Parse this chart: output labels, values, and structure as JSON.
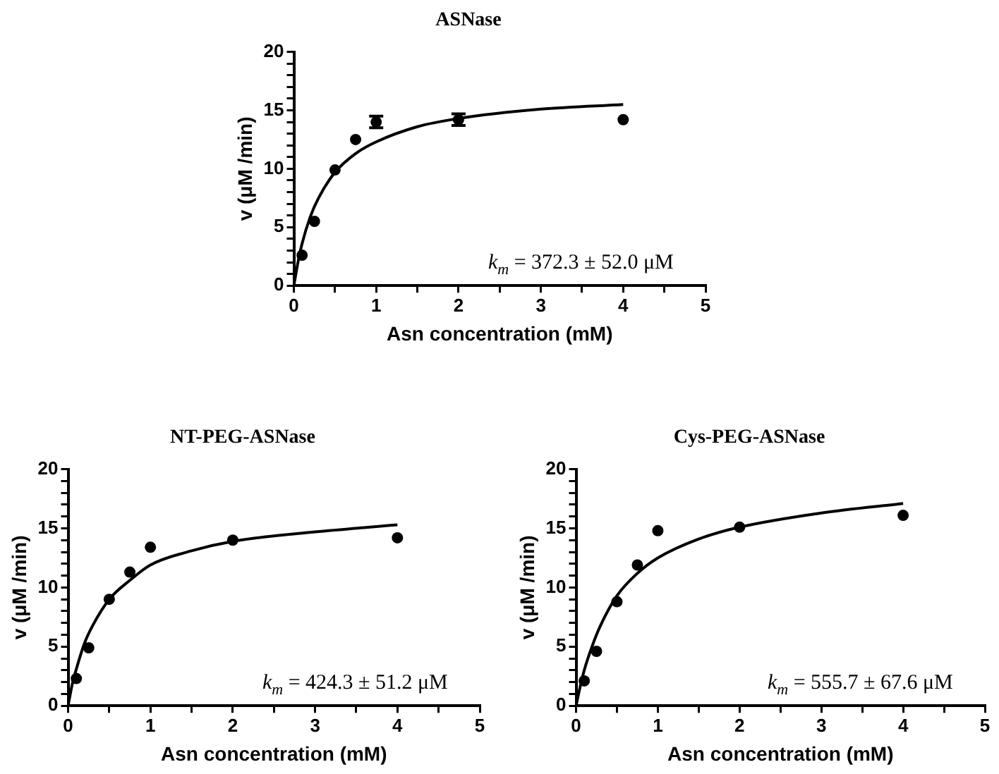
{
  "chart_data": [
    {
      "type": "scatter",
      "title": "ASNase",
      "xlabel": "Asn concentration (mM)",
      "ylabel": "v (μM /min)",
      "xlim": [
        0,
        5
      ],
      "ylim": [
        0,
        20
      ],
      "xticks": [
        0,
        {
          "value": 0.5,
          "label": null
        },
        1,
        {
          "value": 1.5,
          "label": null
        },
        2,
        {
          "value": 2.5,
          "label": null
        },
        3,
        {
          "value": 3.5,
          "label": null
        },
        4,
        {
          "value": 4.5,
          "label": null
        },
        5
      ],
      "yticks": [
        0,
        {
          "value": 1,
          "label": null
        },
        {
          "value": 2,
          "label": null
        },
        {
          "value": 3,
          "label": null
        },
        {
          "value": 4,
          "label": null
        },
        5,
        {
          "value": 6,
          "label": null
        },
        {
          "value": 7,
          "label": null
        },
        {
          "value": 8,
          "label": null
        },
        {
          "value": 9,
          "label": null
        },
        10,
        {
          "value": 11,
          "label": null
        },
        {
          "value": 12,
          "label": null
        },
        {
          "value": 13,
          "label": null
        },
        {
          "value": 14,
          "label": null
        },
        15,
        {
          "value": 16,
          "label": null
        },
        {
          "value": 17,
          "label": null
        },
        {
          "value": 18,
          "label": null
        },
        {
          "value": 19,
          "label": null
        },
        20
      ],
      "grid": false,
      "legend": false,
      "annotations": [
        "k$_{m}$ = 372.3 ± 52.0 μM"
      ],
      "series": [
        {
          "type": "scatter",
          "color": "#000000",
          "marker": "circle",
          "x": [
            0.1,
            0.25,
            0.5,
            0.75,
            1,
            2,
            4
          ],
          "values": [
            2.6,
            5.5,
            9.9,
            12.5,
            14.0,
            14.2,
            14.2
          ],
          "errors": [
            null,
            null,
            null,
            null,
            0.5,
            0.5,
            null
          ]
        },
        {
          "type": "line",
          "color": "#000000",
          "marker": "none",
          "line_style": "solid",
          "x": [
            0,
            0.05,
            0.1,
            0.2,
            0.3,
            0.5,
            0.75,
            1,
            1.5,
            2,
            3,
            4
          ],
          "values": [
            0,
            2.0,
            3.6,
            5.9,
            7.5,
            9.7,
            11.3,
            12.3,
            13.6,
            14.3,
            15.1,
            15.5
          ]
        }
      ]
    },
    {
      "type": "scatter",
      "title": "NT-PEG-ASNase",
      "xlabel": "Asn concentration (mM)",
      "ylabel": "v (μM /min)",
      "xlim": [
        0,
        5
      ],
      "ylim": [
        0,
        20
      ],
      "xticks": [
        0,
        {
          "value": 0.5,
          "label": null
        },
        1,
        {
          "value": 1.5,
          "label": null
        },
        2,
        {
          "value": 2.5,
          "label": null
        },
        3,
        {
          "value": 3.5,
          "label": null
        },
        4,
        {
          "value": 4.5,
          "label": null
        },
        5
      ],
      "yticks": [
        0,
        {
          "value": 1,
          "label": null
        },
        {
          "value": 2,
          "label": null
        },
        {
          "value": 3,
          "label": null
        },
        {
          "value": 4,
          "label": null
        },
        5,
        {
          "value": 6,
          "label": null
        },
        {
          "value": 7,
          "label": null
        },
        {
          "value": 8,
          "label": null
        },
        {
          "value": 9,
          "label": null
        },
        10,
        {
          "value": 11,
          "label": null
        },
        {
          "value": 12,
          "label": null
        },
        {
          "value": 13,
          "label": null
        },
        {
          "value": 14,
          "label": null
        },
        15,
        {
          "value": 16,
          "label": null
        },
        {
          "value": 17,
          "label": null
        },
        {
          "value": 18,
          "label": null
        },
        {
          "value": 19,
          "label": null
        },
        20
      ],
      "grid": false,
      "legend": false,
      "annotations": [
        "k$_{m}$ = 424.3 ± 51.2 μM"
      ],
      "series": [
        {
          "type": "scatter",
          "color": "#000000",
          "marker": "circle",
          "x": [
            0.1,
            0.25,
            0.5,
            0.75,
            1,
            2,
            4
          ],
          "values": [
            2.3,
            4.9,
            9.0,
            11.3,
            13.4,
            14.0,
            14.2
          ]
        },
        {
          "type": "line",
          "color": "#000000",
          "marker": "none",
          "line_style": "solid",
          "x": [
            0,
            0.05,
            0.1,
            0.2,
            0.3,
            0.5,
            0.75,
            1,
            1.5,
            2,
            3,
            4
          ],
          "values": [
            0,
            1.8,
            3.1,
            5.3,
            6.8,
            9.0,
            10.6,
            11.9,
            13.1,
            13.9,
            14.7,
            15.3
          ]
        }
      ]
    },
    {
      "type": "scatter",
      "title": "Cys-PEG-ASNase",
      "xlabel": "Asn concentration (mM)",
      "ylabel": "v (μM /min)",
      "xlim": [
        0,
        5
      ],
      "ylim": [
        0,
        20
      ],
      "xticks": [
        0,
        {
          "value": 0.5,
          "label": null
        },
        1,
        {
          "value": 1.5,
          "label": null
        },
        2,
        {
          "value": 2.5,
          "label": null
        },
        3,
        {
          "value": 3.5,
          "label": null
        },
        4,
        {
          "value": 4.5,
          "label": null
        },
        5
      ],
      "yticks": [
        0,
        {
          "value": 1,
          "label": null
        },
        {
          "value": 2,
          "label": null
        },
        {
          "value": 3,
          "label": null
        },
        {
          "value": 4,
          "label": null
        },
        5,
        {
          "value": 6,
          "label": null
        },
        {
          "value": 7,
          "label": null
        },
        {
          "value": 8,
          "label": null
        },
        {
          "value": 9,
          "label": null
        },
        10,
        {
          "value": 11,
          "label": null
        },
        {
          "value": 12,
          "label": null
        },
        {
          "value": 13,
          "label": null
        },
        {
          "value": 14,
          "label": null
        },
        15,
        {
          "value": 16,
          "label": null
        },
        {
          "value": 17,
          "label": null
        },
        {
          "value": 18,
          "label": null
        },
        {
          "value": 19,
          "label": null
        },
        20
      ],
      "grid": false,
      "legend": false,
      "annotations": [
        "k$_{m}$ = 555.7 ± 67.6 μM"
      ],
      "series": [
        {
          "type": "scatter",
          "color": "#000000",
          "marker": "circle",
          "x": [
            0.1,
            0.25,
            0.5,
            0.75,
            1,
            2,
            4
          ],
          "values": [
            2.1,
            4.6,
            8.8,
            11.9,
            14.8,
            15.1,
            16.1
          ]
        },
        {
          "type": "line",
          "color": "#000000",
          "marker": "none",
          "line_style": "solid",
          "x": [
            0,
            0.05,
            0.1,
            0.2,
            0.3,
            0.5,
            0.75,
            1,
            1.5,
            2,
            3,
            4
          ],
          "values": [
            0,
            1.6,
            3.0,
            5.1,
            6.8,
            9.3,
            11.2,
            12.5,
            14.1,
            15.1,
            16.3,
            17.1
          ]
        }
      ]
    }
  ]
}
